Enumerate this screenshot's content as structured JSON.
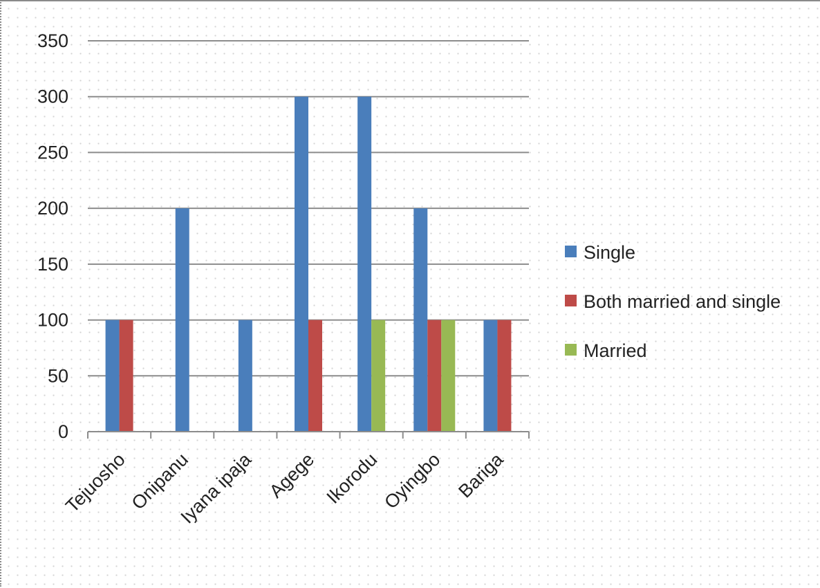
{
  "chart_data": {
    "type": "bar",
    "categories": [
      "Tejuosho",
      "Onipanu",
      "Iyana ipaja",
      "Agege",
      "Ikorodu",
      "Oyingbo",
      "Bariga"
    ],
    "series": [
      {
        "name": "Single",
        "color": "#4a7ebb",
        "values": [
          100,
          200,
          100,
          300,
          300,
          200,
          100
        ]
      },
      {
        "name": "Both married and single",
        "color": "#be4b48",
        "values": [
          100,
          0,
          0,
          100,
          0,
          100,
          100
        ]
      },
      {
        "name": "Married",
        "color": "#98b954",
        "values": [
          0,
          0,
          0,
          0,
          100,
          100,
          0
        ]
      }
    ],
    "ylim": [
      0,
      350
    ],
    "yticks": [
      "0",
      "50",
      "100",
      "150",
      "200",
      "250",
      "300",
      "350"
    ],
    "title": "",
    "xlabel": "",
    "ylabel": "",
    "grid": true,
    "legend_position": "right"
  }
}
